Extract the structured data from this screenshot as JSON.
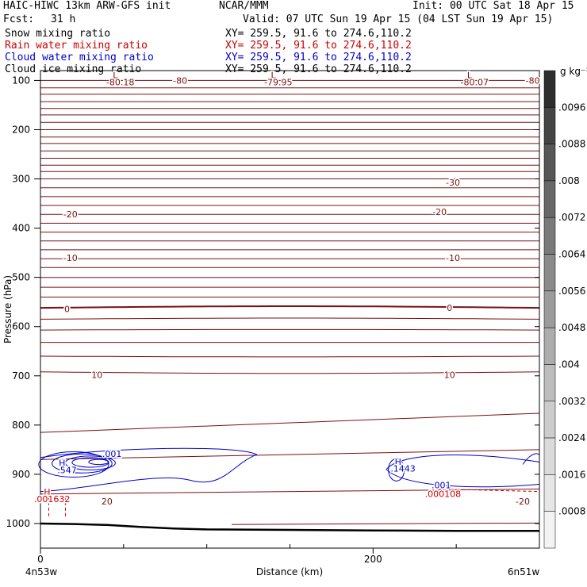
{
  "header": {
    "model": "HAIC-HIWC 13km ARW-GFS init",
    "org": "NCAR/MMM",
    "init": "Init: 00 UTC Sat 18 Apr 15",
    "fcst_label": "Fcst:",
    "fcst_value": "31 h",
    "valid": "Valid: 07 UTC Sun 19 Apr 15 (04 LST Sun 19 Apr 15)"
  },
  "fields": [
    {
      "name": "Snow mixing ratio",
      "xy": "XY= 259.5, 91.6 to 274.6,110.2",
      "color": "#000000"
    },
    {
      "name": "Rain water mixing ratio",
      "xy": "XY= 259.5, 91.6 to 274.6,110.2",
      "color": "#cc0000"
    },
    {
      "name": "Cloud water mixing ratio",
      "xy": "XY= 259.5, 91.6 to 274.6,110.2",
      "color": "#0000cc"
    },
    {
      "name": "Cloud ice mixing ratio",
      "xy": "XY= 259.5, 91.6 to 274.6,110.2",
      "color": "#000000"
    }
  ],
  "chart_data": {
    "type": "heatmap",
    "xlabel": "Distance (km)",
    "ylabel": "Pressure (hPa)",
    "xlim": [
      0,
      300
    ],
    "ylim": [
      1050,
      80
    ],
    "x_ticks": [
      {
        "value": 0,
        "label": "0"
      },
      {
        "value": 200,
        "label": "200"
      }
    ],
    "y_ticks": [
      100,
      200,
      300,
      400,
      500,
      600,
      700,
      800,
      900,
      1000
    ],
    "endpoint_left": "4n53w",
    "endpoint_right": "6n51w",
    "colorbar": {
      "unit": "g kg⁻¹",
      "labels": [
        ".0096",
        ".0088",
        ".008",
        ".0072",
        ".0064",
        ".0056",
        ".0048",
        ".004",
        ".0032",
        ".0024",
        ".0016",
        ".0008"
      ],
      "colors": [
        "#2e2e2e",
        "#454545",
        "#575757",
        "#686868",
        "#7a7a7a",
        "#8b8b8b",
        "#9c9c9c",
        "#adadad",
        "#bdbdbd",
        "#cccccc",
        "#dadada",
        "#e6e6e6",
        "#f3f3f3"
      ]
    },
    "temperature_color": "#7a1010",
    "isotherm_levels": [
      100,
      115,
      128,
      143,
      157,
      170,
      185,
      200,
      215,
      228,
      243,
      258,
      272,
      285,
      300,
      318,
      336,
      354,
      372,
      390,
      408,
      426,
      444,
      462,
      480,
      500,
      520,
      540,
      562,
      585,
      607,
      632,
      660,
      692
    ],
    "isotherm_labels": [
      {
        "text": "-30",
        "x": 248,
        "p": 307
      },
      {
        "text": "-20",
        "x": 18,
        "p": 372
      },
      {
        "text": "-20",
        "x": 240,
        "p": 367
      },
      {
        "text": "-10",
        "x": 18,
        "p": 460
      },
      {
        "text": "-10",
        "x": 248,
        "p": 460
      },
      {
        "text": "0",
        "x": 16,
        "p": 564
      },
      {
        "text": "0",
        "x": 246,
        "p": 562
      },
      {
        "text": "10",
        "x": 34,
        "p": 698
      },
      {
        "text": "10",
        "x": 246,
        "p": 698
      },
      {
        "text": "20",
        "x": 40,
        "p": 955
      },
      {
        "text": "-20",
        "x": 290,
        "p": 955
      }
    ],
    "extrema": [
      {
        "type": "L",
        "value": "-80.18",
        "x": 45,
        "p": 97
      },
      {
        "type": "L",
        "value": "-79.95",
        "x": 140,
        "p": 97
      },
      {
        "type": "L",
        "value": "-80.07",
        "x": 258,
        "p": 97
      },
      {
        "type": "H",
        "value": ".547",
        "x": 13,
        "p": 885
      },
      {
        "type": "H",
        "value": ".1443",
        "x": 215,
        "p": 882
      },
      {
        "type": "H",
        "value": ".001632",
        "x": 4,
        "p": 944
      }
    ],
    "minor_labels": [
      {
        "text": "-80",
        "x": 84,
        "p": 100,
        "color": "#7a1010"
      },
      {
        "text": "-80",
        "x": 296,
        "p": 100,
        "color": "#7a1010"
      },
      {
        "text": ".001",
        "x": 43,
        "p": 858,
        "color": "#0000cc"
      },
      {
        "text": ".001",
        "x": 241,
        "p": 922,
        "color": "#0000cc"
      },
      {
        "text": ".000108",
        "x": 242,
        "p": 940,
        "color": "#cc0000"
      }
    ],
    "cloud_water_contour_values": [
      0.001,
      0.1443,
      0.547
    ],
    "surface_pressure": [
      {
        "x": 0,
        "p": 1000
      },
      {
        "x": 20,
        "p": 1001
      },
      {
        "x": 40,
        "p": 1003
      },
      {
        "x": 60,
        "p": 1007
      },
      {
        "x": 80,
        "p": 1010
      },
      {
        "x": 100,
        "p": 1012
      },
      {
        "x": 150,
        "p": 1013
      },
      {
        "x": 200,
        "p": 1014
      },
      {
        "x": 250,
        "p": 1015
      },
      {
        "x": 300,
        "p": 1015
      }
    ]
  }
}
